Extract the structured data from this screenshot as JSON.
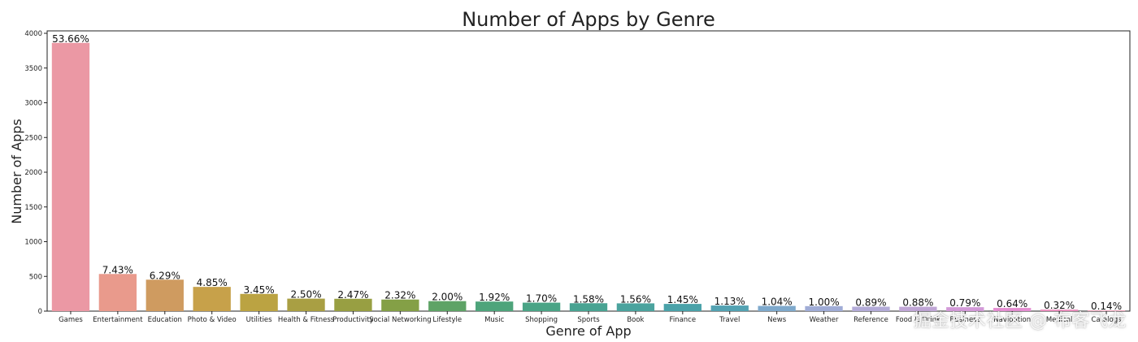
{
  "chart_data": {
    "type": "bar",
    "title": "Number of Apps by Genre",
    "xlabel": "Genre of App",
    "ylabel": "Number of Apps",
    "ylim": [
      0,
      4000
    ],
    "yticks": [
      0,
      500,
      1000,
      1500,
      2000,
      2500,
      3000,
      3500,
      4000
    ],
    "grid": false,
    "categories": [
      "Games",
      "Entertainment",
      "Education",
      "Photo & Video",
      "Utilities",
      "Health & Fitness",
      "Productivity",
      "Social Networking",
      "Lifestyle",
      "Music",
      "Shopping",
      "Sports",
      "Book",
      "Finance",
      "Travel",
      "News",
      "Weather",
      "Reference",
      "Food & Drink",
      "Business",
      "Navigation",
      "Medical",
      "Catalogs"
    ],
    "values": [
      3862,
      535,
      453,
      349,
      248,
      180,
      178,
      167,
      144,
      138,
      122,
      114,
      112,
      104,
      81,
      75,
      72,
      64,
      63,
      57,
      46,
      23,
      10
    ],
    "data_labels": [
      "53.66%",
      "7.43%",
      "6.29%",
      "4.85%",
      "3.45%",
      "2.50%",
      "2.47%",
      "2.32%",
      "2.00%",
      "1.92%",
      "1.70%",
      "1.58%",
      "1.56%",
      "1.45%",
      "1.13%",
      "1.04%",
      "1.00%",
      "0.89%",
      "0.88%",
      "0.79%",
      "0.64%",
      "0.32%",
      "0.14%"
    ],
    "colors": [
      "#eb98a4",
      "#e99a8c",
      "#cf9b60",
      "#c7a14a",
      "#bba342",
      "#a99f43",
      "#989f42",
      "#84a046",
      "#5ea366",
      "#4ea47b",
      "#4aa486",
      "#49a392",
      "#4ba39e",
      "#4aa2a9",
      "#53a2b2",
      "#7ea9cc",
      "#a0acd6",
      "#b3abd8",
      "#c0a6d6",
      "#d39ad8",
      "#e58ed2",
      "#eb8fbe",
      "#ea94ae"
    ]
  },
  "watermark": "掘金技术社区 @ 布客飞龙"
}
